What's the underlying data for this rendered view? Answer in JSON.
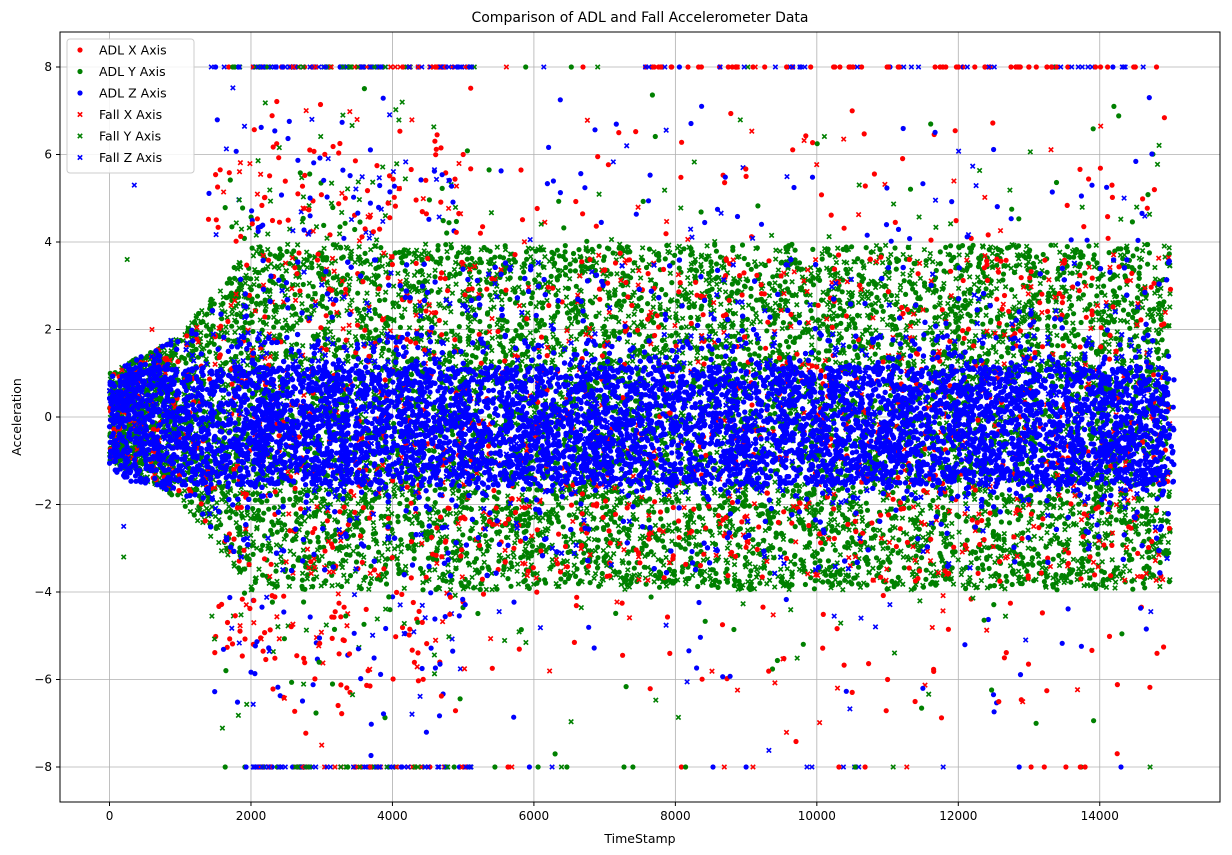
{
  "chart_data": {
    "type": "scatter",
    "title": "Comparison of ADL and Fall Accelerometer Data",
    "xlabel": "TimeStamp",
    "ylabel": "Acceleration",
    "xlim": [
      -700,
      15700
    ],
    "ylim": [
      -8.8,
      8.8
    ],
    "xticks": [
      0,
      2000,
      4000,
      6000,
      8000,
      10000,
      12000,
      14000
    ],
    "yticks": [
      -8,
      -6,
      -4,
      -2,
      0,
      2,
      4,
      6,
      8
    ],
    "xtick_labels": [
      "0",
      "2000",
      "4000",
      "6000",
      "8000",
      "10000",
      "12000",
      "14000"
    ],
    "ytick_labels": [
      "−8",
      "−6",
      "−4",
      "−2",
      "0",
      "2",
      "4",
      "6",
      "8"
    ],
    "grid": true,
    "legend_position": "top-left",
    "series": [
      {
        "name": "ADL X Axis",
        "marker": "circle",
        "color": "#ff0000"
      },
      {
        "name": "ADL Y Axis",
        "marker": "circle",
        "color": "#008000"
      },
      {
        "name": "ADL Z Axis",
        "marker": "circle",
        "color": "#0000ff"
      },
      {
        "name": "Fall X Axis",
        "marker": "x",
        "color": "#ff0000"
      },
      {
        "name": "Fall Y Axis",
        "marker": "x",
        "color": "#008000"
      },
      {
        "name": "Fall Z Axis",
        "marker": "x",
        "color": "#0000ff"
      }
    ],
    "sample_points": [
      {
        "series": 0,
        "x": 5000,
        "y": 6.0
      },
      {
        "series": 0,
        "x": 7200,
        "y": 6.5
      },
      {
        "series": 0,
        "x": 9000,
        "y": 5.5
      },
      {
        "series": 0,
        "x": 10500,
        "y": 7.0
      },
      {
        "series": 0,
        "x": 12000,
        "y": 8.0
      },
      {
        "series": 0,
        "x": 13000,
        "y": 8.0
      },
      {
        "series": 0,
        "x": 14500,
        "y": 8.0
      },
      {
        "series": 0,
        "x": 11000,
        "y": -6.0
      },
      {
        "series": 1,
        "x": 6300,
        "y": -7.7
      },
      {
        "series": 1,
        "x": 7400,
        "y": -8.0
      },
      {
        "series": 1,
        "x": 13100,
        "y": -7.0
      },
      {
        "series": 1,
        "x": 14200,
        "y": 7.1
      },
      {
        "series": 2,
        "x": 9000,
        "y": -8.0
      },
      {
        "series": 2,
        "x": 11500,
        "y": -6.2
      },
      {
        "series": 2,
        "x": 14300,
        "y": -8.0
      },
      {
        "series": 2,
        "x": 14700,
        "y": 7.3
      },
      {
        "series": 3,
        "x": 2600,
        "y": 8.0
      },
      {
        "series": 3,
        "x": 3000,
        "y": -7.5
      },
      {
        "series": 3,
        "x": 3500,
        "y": 6.8
      },
      {
        "series": 3,
        "x": 600,
        "y": 2.0
      },
      {
        "series": 4,
        "x": 250,
        "y": 3.6
      },
      {
        "series": 4,
        "x": 200,
        "y": -3.2
      },
      {
        "series": 4,
        "x": 2800,
        "y": -8.0
      },
      {
        "series": 4,
        "x": 3300,
        "y": 6.9
      },
      {
        "series": 5,
        "x": 350,
        "y": 5.3
      },
      {
        "series": 5,
        "x": 2100,
        "y": 8.0
      },
      {
        "series": 5,
        "x": 3800,
        "y": 8.0
      },
      {
        "series": 5,
        "x": 200,
        "y": -2.5
      }
    ]
  }
}
